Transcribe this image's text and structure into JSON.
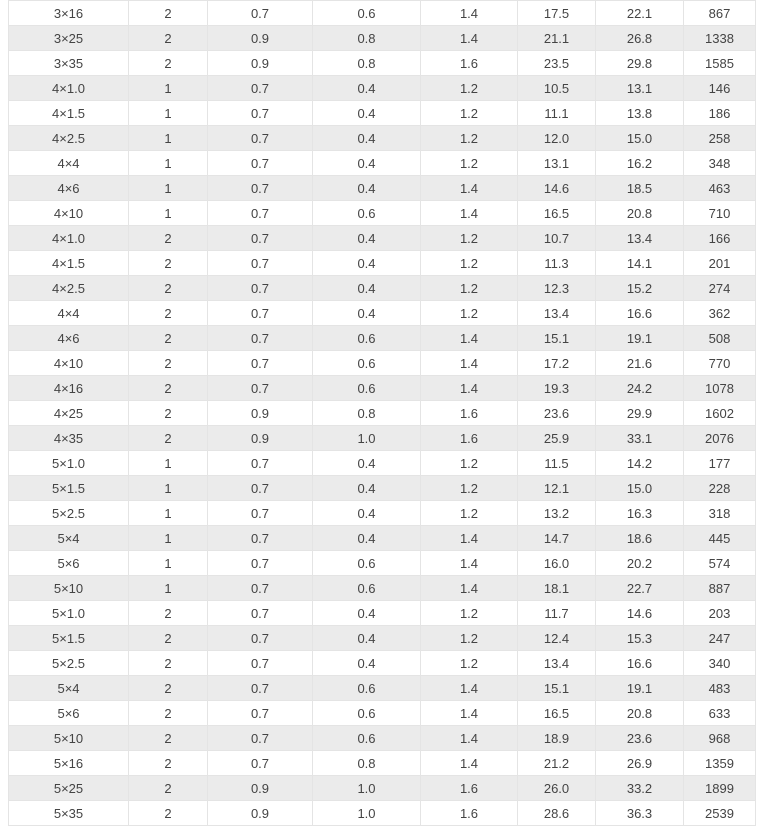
{
  "colors": {
    "row_stripe": "#ebebeb",
    "row_base": "#ffffff",
    "grid_border": "#e4e4e4",
    "text": "#444444"
  },
  "chart_data": {
    "type": "table",
    "title": "",
    "columns": [],
    "grid": true,
    "zebra_striping": "even-rows-gray",
    "rows": [
      [
        "3×16",
        "2",
        "0.7",
        "0.6",
        "1.4",
        "17.5",
        "22.1",
        "867"
      ],
      [
        "3×25",
        "2",
        "0.9",
        "0.8",
        "1.4",
        "21.1",
        "26.8",
        "1338"
      ],
      [
        "3×35",
        "2",
        "0.9",
        "0.8",
        "1.6",
        "23.5",
        "29.8",
        "1585"
      ],
      [
        "4×1.0",
        "1",
        "0.7",
        "0.4",
        "1.2",
        "10.5",
        "13.1",
        "146"
      ],
      [
        "4×1.5",
        "1",
        "0.7",
        "0.4",
        "1.2",
        "11.1",
        "13.8",
        "186"
      ],
      [
        "4×2.5",
        "1",
        "0.7",
        "0.4",
        "1.2",
        "12.0",
        "15.0",
        "258"
      ],
      [
        "4×4",
        "1",
        "0.7",
        "0.4",
        "1.2",
        "13.1",
        "16.2",
        "348"
      ],
      [
        "4×6",
        "1",
        "0.7",
        "0.4",
        "1.4",
        "14.6",
        "18.5",
        "463"
      ],
      [
        "4×10",
        "1",
        "0.7",
        "0.6",
        "1.4",
        "16.5",
        "20.8",
        "710"
      ],
      [
        "4×1.0",
        "2",
        "0.7",
        "0.4",
        "1.2",
        "10.7",
        "13.4",
        "166"
      ],
      [
        "4×1.5",
        "2",
        "0.7",
        "0.4",
        "1.2",
        "11.3",
        "14.1",
        "201"
      ],
      [
        "4×2.5",
        "2",
        "0.7",
        "0.4",
        "1.2",
        "12.3",
        "15.2",
        "274"
      ],
      [
        "4×4",
        "2",
        "0.7",
        "0.4",
        "1.2",
        "13.4",
        "16.6",
        "362"
      ],
      [
        "4×6",
        "2",
        "0.7",
        "0.6",
        "1.4",
        "15.1",
        "19.1",
        "508"
      ],
      [
        "4×10",
        "2",
        "0.7",
        "0.6",
        "1.4",
        "17.2",
        "21.6",
        "770"
      ],
      [
        "4×16",
        "2",
        "0.7",
        "0.6",
        "1.4",
        "19.3",
        "24.2",
        "1078"
      ],
      [
        "4×25",
        "2",
        "0.9",
        "0.8",
        "1.6",
        "23.6",
        "29.9",
        "1602"
      ],
      [
        "4×35",
        "2",
        "0.9",
        "1.0",
        "1.6",
        "25.9",
        "33.1",
        "2076"
      ],
      [
        "5×1.0",
        "1",
        "0.7",
        "0.4",
        "1.2",
        "11.5",
        "14.2",
        "177"
      ],
      [
        "5×1.5",
        "1",
        "0.7",
        "0.4",
        "1.2",
        "12.1",
        "15.0",
        "228"
      ],
      [
        "5×2.5",
        "1",
        "0.7",
        "0.4",
        "1.2",
        "13.2",
        "16.3",
        "318"
      ],
      [
        "5×4",
        "1",
        "0.7",
        "0.4",
        "1.4",
        "14.7",
        "18.6",
        "445"
      ],
      [
        "5×6",
        "1",
        "0.7",
        "0.6",
        "1.4",
        "16.0",
        "20.2",
        "574"
      ],
      [
        "5×10",
        "1",
        "0.7",
        "0.6",
        "1.4",
        "18.1",
        "22.7",
        "887"
      ],
      [
        "5×1.0",
        "2",
        "0.7",
        "0.4",
        "1.2",
        "11.7",
        "14.6",
        "203"
      ],
      [
        "5×1.5",
        "2",
        "0.7",
        "0.4",
        "1.2",
        "12.4",
        "15.3",
        "247"
      ],
      [
        "5×2.5",
        "2",
        "0.7",
        "0.4",
        "1.2",
        "13.4",
        "16.6",
        "340"
      ],
      [
        "5×4",
        "2",
        "0.7",
        "0.6",
        "1.4",
        "15.1",
        "19.1",
        "483"
      ],
      [
        "5×6",
        "2",
        "0.7",
        "0.6",
        "1.4",
        "16.5",
        "20.8",
        "633"
      ],
      [
        "5×10",
        "2",
        "0.7",
        "0.6",
        "1.4",
        "18.9",
        "23.6",
        "968"
      ],
      [
        "5×16",
        "2",
        "0.7",
        "0.8",
        "1.4",
        "21.2",
        "26.9",
        "1359"
      ],
      [
        "5×25",
        "2",
        "0.9",
        "1.0",
        "1.6",
        "26.0",
        "33.2",
        "1899"
      ],
      [
        "5×35",
        "2",
        "0.9",
        "1.0",
        "1.6",
        "28.6",
        "36.3",
        "2539"
      ]
    ]
  }
}
